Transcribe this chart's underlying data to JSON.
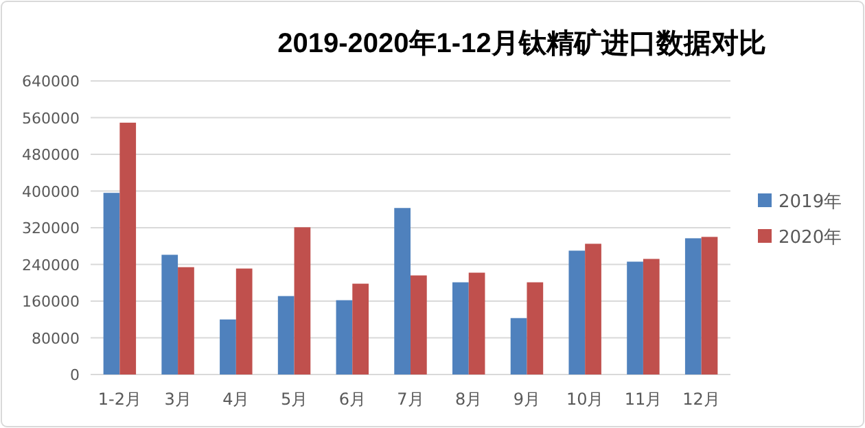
{
  "chart_data": {
    "type": "bar",
    "title": "2019-2020年1-12月钛精矿进口数据对比",
    "categories": [
      "1-2月",
      "3月",
      "4月",
      "5月",
      "6月",
      "7月",
      "8月",
      "9月",
      "10月",
      "11月",
      "12月"
    ],
    "series": [
      {
        "name": "2019年",
        "color": "#4f81bd",
        "values": [
          396000,
          261000,
          120000,
          171000,
          162000,
          363000,
          201000,
          123000,
          270000,
          246000,
          297000
        ]
      },
      {
        "name": "2020年",
        "color": "#c0504d",
        "values": [
          549000,
          234000,
          231000,
          321000,
          198000,
          216000,
          222000,
          201000,
          285000,
          252000,
          300000
        ]
      }
    ],
    "ylim": [
      0,
      640000
    ],
    "yticks": [
      0,
      80000,
      160000,
      240000,
      320000,
      400000,
      480000,
      560000,
      640000
    ],
    "grid": "y",
    "legend": "right"
  }
}
